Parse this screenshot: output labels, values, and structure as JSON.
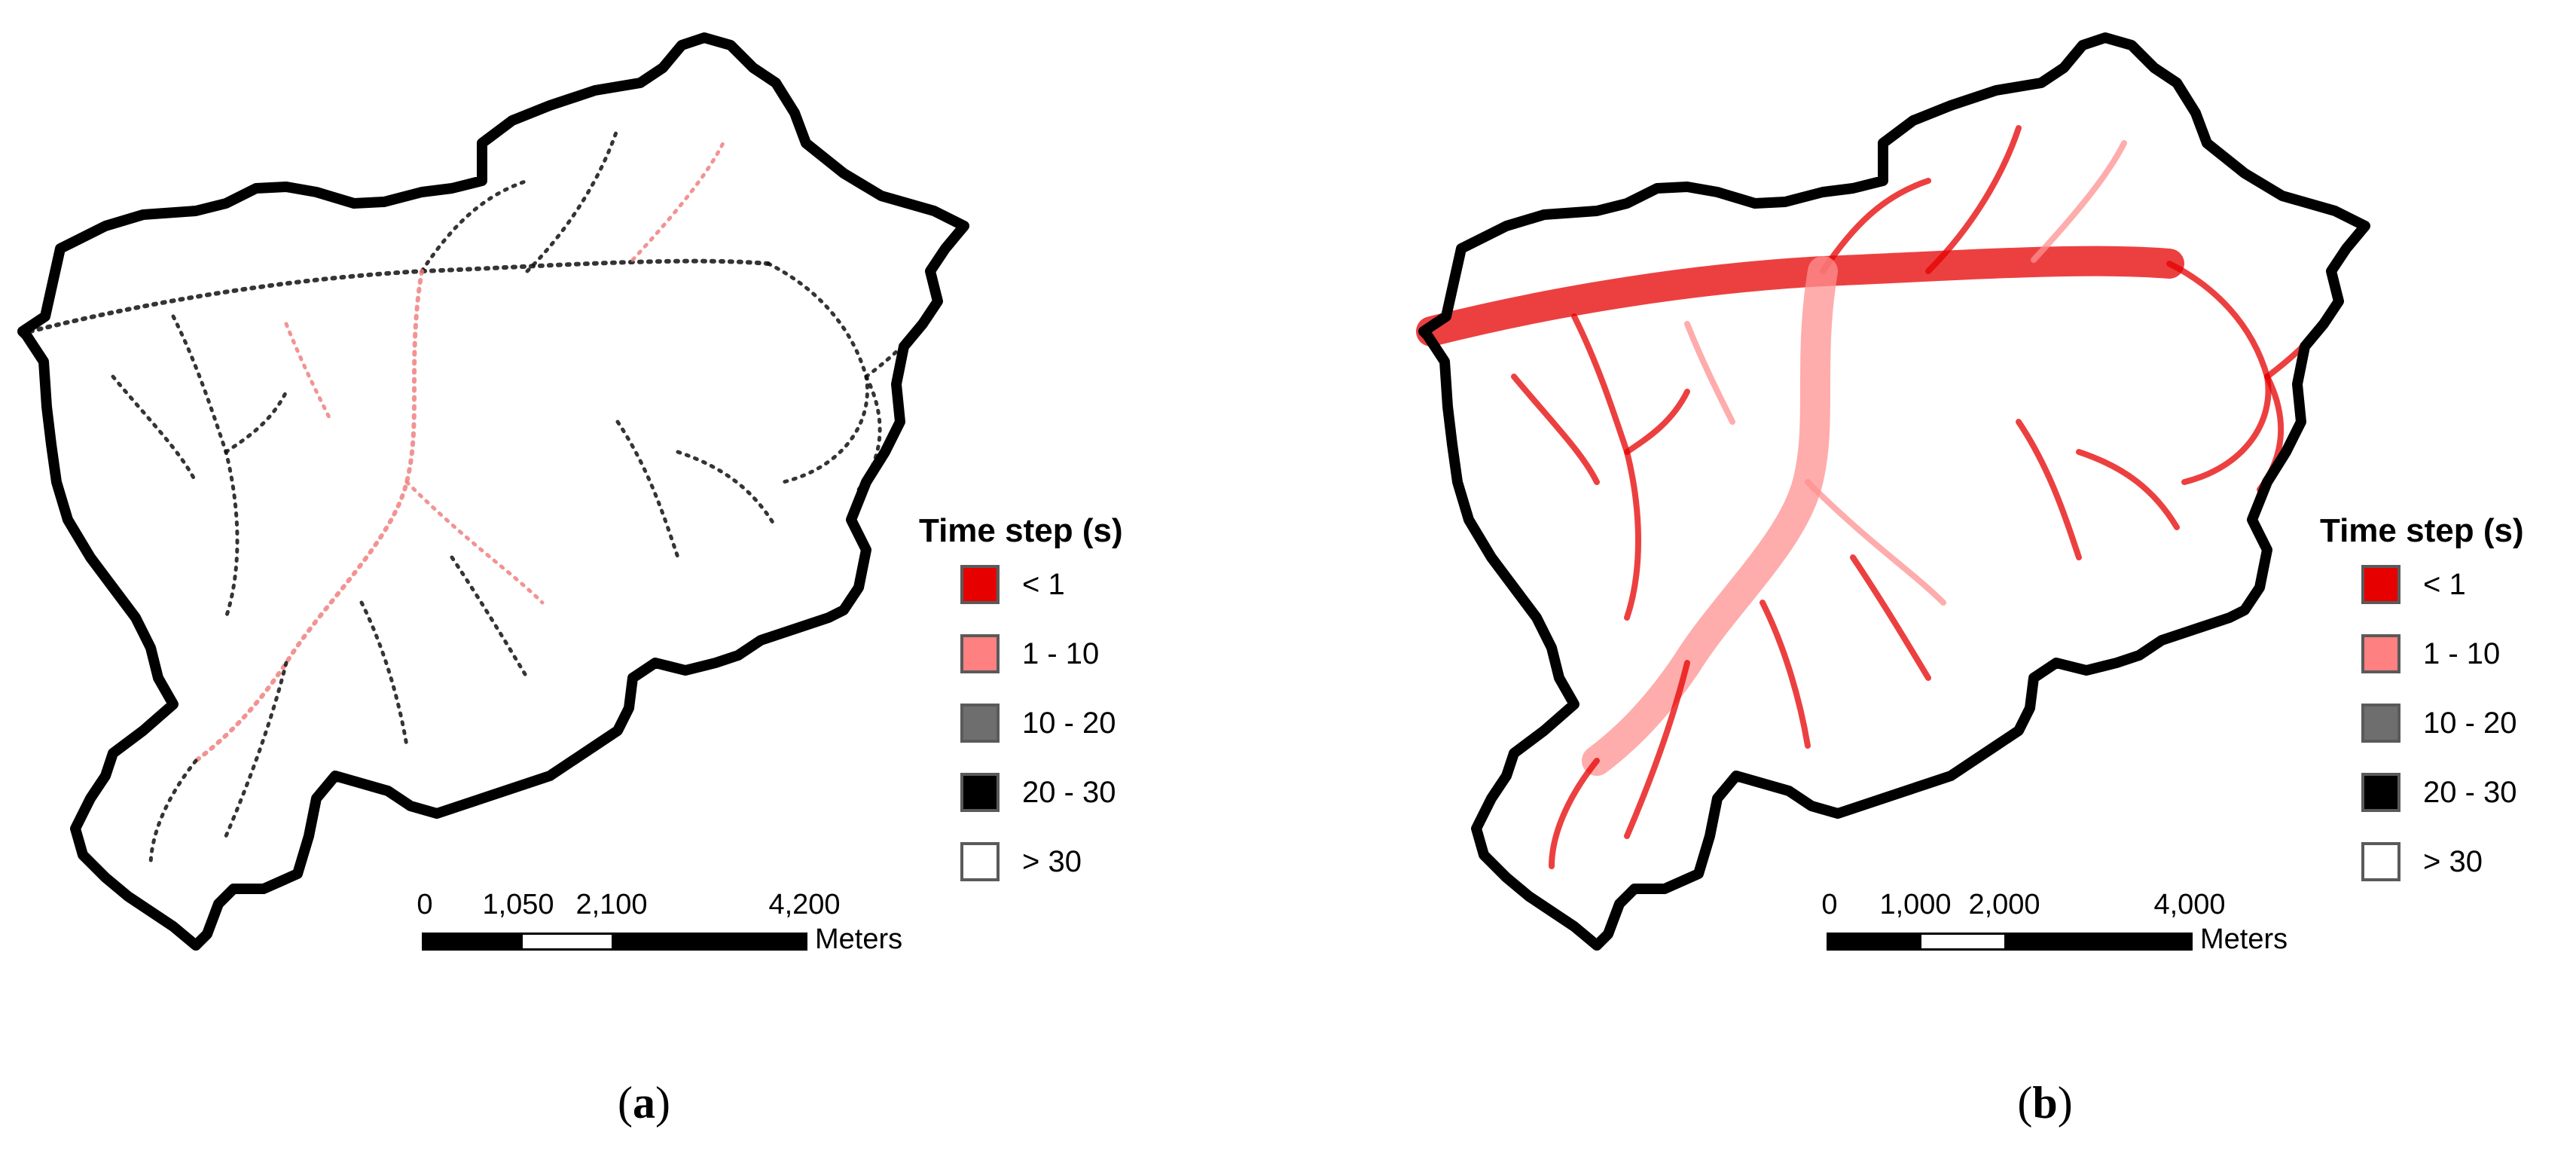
{
  "panels": [
    {
      "legend": {
        "title": "Time step (s)",
        "items": [
          {
            "label": "< 1",
            "color": "#e60000"
          },
          {
            "label": "1 - 10",
            "color": "#ff8080"
          },
          {
            "label": "10 - 20",
            "color": "#6e6e6e"
          },
          {
            "label": "20 - 30",
            "color": "#000000"
          },
          {
            "label": "> 30",
            "color": "#ffffff"
          }
        ]
      },
      "scale": {
        "ticks": [
          "0",
          "1,050",
          "2,100",
          "4,200"
        ],
        "units": "Meters"
      },
      "caption_letter": "a",
      "stream_color": "#111111",
      "stream_accent": "#f08080"
    },
    {
      "legend": {
        "title": "Time step (s)",
        "items": [
          {
            "label": "< 1",
            "color": "#e60000"
          },
          {
            "label": "1 - 10",
            "color": "#ff8080"
          },
          {
            "label": "10 - 20",
            "color": "#6e6e6e"
          },
          {
            "label": "20 - 30",
            "color": "#000000"
          },
          {
            "label": "> 30",
            "color": "#ffffff"
          }
        ]
      },
      "scale": {
        "ticks": [
          "0",
          "1,000",
          "2,000",
          "4,000"
        ],
        "units": "Meters"
      },
      "caption_letter": "b",
      "stream_color": "#e60000",
      "stream_accent": "#ff9090"
    }
  ]
}
